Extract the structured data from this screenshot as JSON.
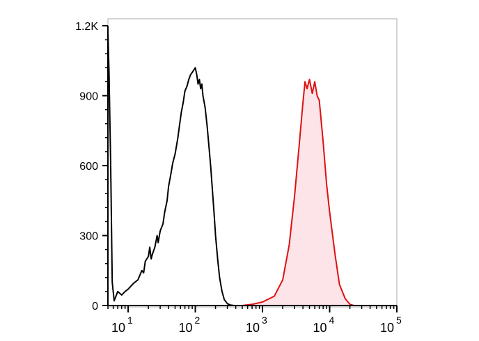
{
  "chart_data": {
    "type": "area",
    "title": "",
    "xlabel": "",
    "ylabel": "",
    "x_scale": "log",
    "xlim": [
      5,
      100000
    ],
    "ylim": [
      0,
      1200
    ],
    "grid": false,
    "y_ticks": [
      {
        "value": 0,
        "label": "0"
      },
      {
        "value": 300,
        "label": "300"
      },
      {
        "value": 600,
        "label": "600"
      },
      {
        "value": 900,
        "label": "900"
      },
      {
        "value": 1200,
        "label": "1.2K"
      }
    ],
    "x_ticks": [
      {
        "value": 10,
        "base": "10",
        "exp": "1"
      },
      {
        "value": 100,
        "base": "10",
        "exp": "2"
      },
      {
        "value": 1000,
        "base": "10",
        "exp": "3"
      },
      {
        "value": 10000,
        "base": "10",
        "exp": "4"
      },
      {
        "value": 100000,
        "base": "10",
        "exp": "5"
      }
    ],
    "series": [
      {
        "color": "#000000",
        "fill": "none",
        "points": [
          [
            5,
            1180
          ],
          [
            5.2,
            1000
          ],
          [
            5.5,
            600
          ],
          [
            5.8,
            100
          ],
          [
            6.2,
            20
          ],
          [
            7,
            60
          ],
          [
            8,
            45
          ],
          [
            9,
            60
          ],
          [
            10,
            70
          ],
          [
            12,
            95
          ],
          [
            14,
            110
          ],
          [
            16,
            150
          ],
          [
            17,
            140
          ],
          [
            18,
            190
          ],
          [
            19,
            200
          ],
          [
            20,
            210
          ],
          [
            21,
            250
          ],
          [
            22,
            200
          ],
          [
            23,
            220
          ],
          [
            25,
            250
          ],
          [
            27,
            300
          ],
          [
            28,
            270
          ],
          [
            30,
            320
          ],
          [
            33,
            350
          ],
          [
            35,
            400
          ],
          [
            38,
            450
          ],
          [
            40,
            510
          ],
          [
            43,
            560
          ],
          [
            46,
            610
          ],
          [
            50,
            650
          ],
          [
            55,
            720
          ],
          [
            58,
            770
          ],
          [
            62,
            830
          ],
          [
            66,
            870
          ],
          [
            70,
            920
          ],
          [
            75,
            940
          ],
          [
            80,
            970
          ],
          [
            85,
            990
          ],
          [
            90,
            1000
          ],
          [
            95,
            1010
          ],
          [
            100,
            1020
          ],
          [
            105,
            990
          ],
          [
            110,
            950
          ],
          [
            115,
            970
          ],
          [
            120,
            930
          ],
          [
            125,
            950
          ],
          [
            130,
            900
          ],
          [
            140,
            850
          ],
          [
            150,
            770
          ],
          [
            160,
            680
          ],
          [
            170,
            590
          ],
          [
            180,
            490
          ],
          [
            190,
            400
          ],
          [
            200,
            300
          ],
          [
            215,
            200
          ],
          [
            230,
            120
          ],
          [
            250,
            60
          ],
          [
            270,
            25
          ],
          [
            300,
            8
          ],
          [
            330,
            2
          ],
          [
            380,
            0
          ]
        ]
      },
      {
        "color": "#dd1111",
        "fill": "#fce4e8",
        "points": [
          [
            500,
            0
          ],
          [
            700,
            5
          ],
          [
            1000,
            15
          ],
          [
            1500,
            40
          ],
          [
            2000,
            110
          ],
          [
            2500,
            260
          ],
          [
            3000,
            470
          ],
          [
            3500,
            680
          ],
          [
            4000,
            870
          ],
          [
            4300,
            960
          ],
          [
            4600,
            930
          ],
          [
            5000,
            970
          ],
          [
            5500,
            910
          ],
          [
            6000,
            960
          ],
          [
            6500,
            900
          ],
          [
            7000,
            880
          ],
          [
            8000,
            700
          ],
          [
            9000,
            520
          ],
          [
            10000,
            400
          ],
          [
            12000,
            220
          ],
          [
            14000,
            90
          ],
          [
            17000,
            30
          ],
          [
            20000,
            5
          ],
          [
            23000,
            0
          ]
        ]
      }
    ]
  },
  "colors": {
    "axis": "#000000",
    "frame": "#aaaaaa"
  }
}
